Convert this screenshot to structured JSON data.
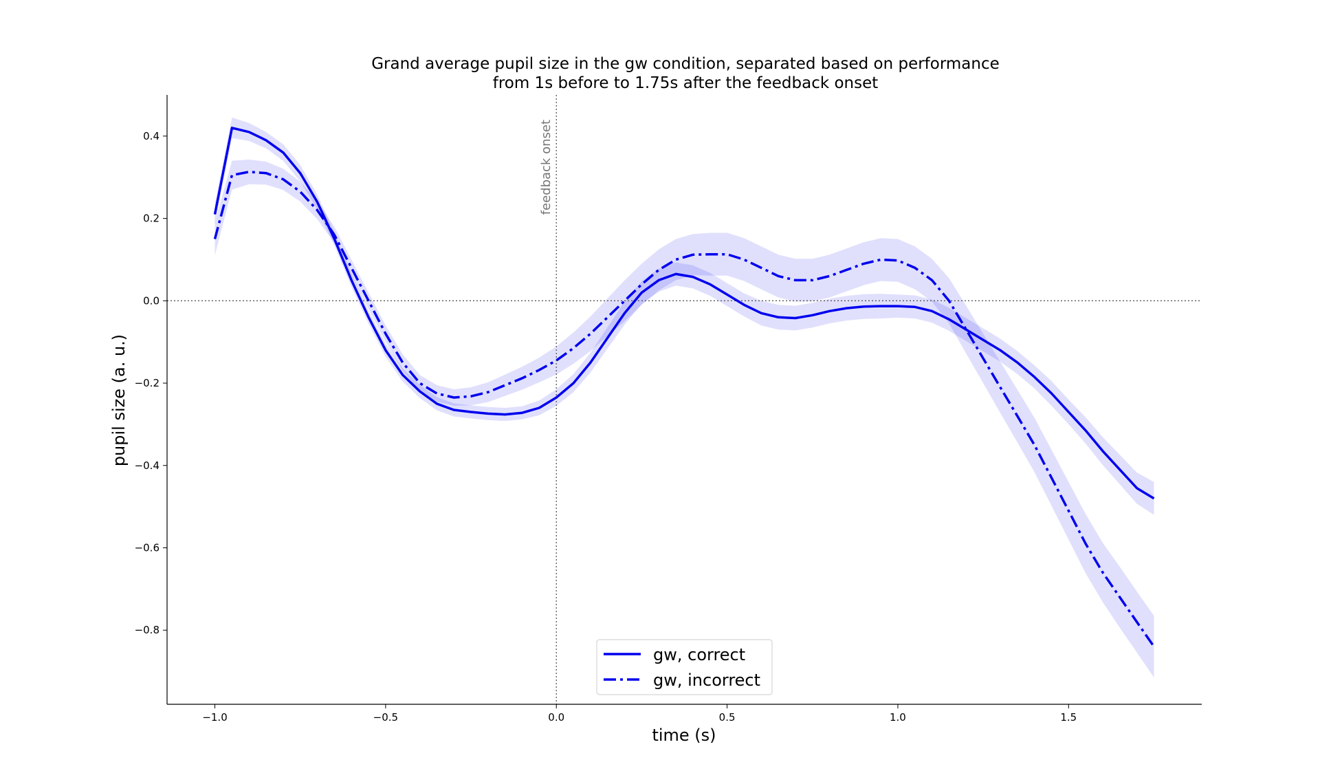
{
  "chart_data": {
    "type": "line",
    "title": "Grand average pupil size in the gw condition, separated based on performance",
    "subtitle": "from 1s before to 1.75s after the feedback onset",
    "xlabel": "time (s)",
    "ylabel": "pupil size (a. u.)",
    "xlim": [
      -1.14,
      1.89
    ],
    "ylim": [
      -0.98,
      0.5
    ],
    "x_ticks": [
      -1.0,
      -0.5,
      0.0,
      0.5,
      1.0,
      1.5
    ],
    "x_tick_labels": [
      "−1.0",
      "−0.5",
      "0.0",
      "0.5",
      "1.0",
      "1.5"
    ],
    "y_ticks": [
      0.4,
      0.2,
      0.0,
      -0.2,
      -0.4,
      -0.6,
      -0.8
    ],
    "y_tick_labels": [
      "0.4",
      "0.2",
      "0.0",
      "−0.2",
      "−0.4",
      "−0.6",
      "−0.8"
    ],
    "grid": false,
    "legend_placement": "bottom-center",
    "reference_lines": {
      "vertical_x": 0.0,
      "horizontal_y": 0.0,
      "style": "dotted"
    },
    "annotation": {
      "text": "feedback onset",
      "x": 0.0
    },
    "x": [
      -1.0,
      -0.95,
      -0.9,
      -0.85,
      -0.8,
      -0.75,
      -0.7,
      -0.65,
      -0.6,
      -0.55,
      -0.5,
      -0.45,
      -0.4,
      -0.35,
      -0.3,
      -0.25,
      -0.2,
      -0.15,
      -0.1,
      -0.05,
      0.0,
      0.05,
      0.1,
      0.15,
      0.2,
      0.25,
      0.3,
      0.35,
      0.4,
      0.45,
      0.5,
      0.55,
      0.6,
      0.65,
      0.7,
      0.75,
      0.8,
      0.85,
      0.9,
      0.95,
      1.0,
      1.05,
      1.1,
      1.15,
      1.2,
      1.25,
      1.3,
      1.35,
      1.4,
      1.45,
      1.5,
      1.55,
      1.6,
      1.65,
      1.7,
      1.75
    ],
    "series": [
      {
        "name": "gw, correct",
        "line_style": "solid",
        "color": "#0000ee",
        "values": [
          0.21,
          0.42,
          0.41,
          0.39,
          0.36,
          0.31,
          0.24,
          0.15,
          0.05,
          -0.04,
          -0.12,
          -0.18,
          -0.22,
          -0.25,
          -0.265,
          -0.27,
          -0.274,
          -0.276,
          -0.272,
          -0.26,
          -0.235,
          -0.2,
          -0.15,
          -0.09,
          -0.03,
          0.02,
          0.05,
          0.065,
          0.058,
          0.04,
          0.015,
          -0.01,
          -0.03,
          -0.04,
          -0.042,
          -0.035,
          -0.025,
          -0.018,
          -0.014,
          -0.013,
          -0.013,
          -0.015,
          -0.025,
          -0.045,
          -0.07,
          -0.095,
          -0.12,
          -0.15,
          -0.185,
          -0.225,
          -0.27,
          -0.315,
          -0.365,
          -0.41,
          -0.455,
          -0.48
        ],
        "err": [
          0.025,
          0.025,
          0.022,
          0.02,
          0.02,
          0.02,
          0.018,
          0.016,
          0.016,
          0.016,
          0.016,
          0.016,
          0.016,
          0.016,
          0.016,
          0.016,
          0.016,
          0.016,
          0.016,
          0.018,
          0.02,
          0.022,
          0.024,
          0.026,
          0.028,
          0.028,
          0.028,
          0.028,
          0.028,
          0.028,
          0.028,
          0.028,
          0.03,
          0.03,
          0.03,
          0.03,
          0.03,
          0.03,
          0.03,
          0.03,
          0.028,
          0.028,
          0.028,
          0.028,
          0.028,
          0.028,
          0.028,
          0.028,
          0.028,
          0.03,
          0.03,
          0.032,
          0.034,
          0.036,
          0.038,
          0.04
        ]
      },
      {
        "name": "gw, incorrect",
        "line_style": "dashdot",
        "color": "#0000ee",
        "values": [
          0.15,
          0.305,
          0.313,
          0.31,
          0.295,
          0.265,
          0.22,
          0.16,
          0.08,
          0.0,
          -0.08,
          -0.15,
          -0.2,
          -0.225,
          -0.235,
          -0.232,
          -0.222,
          -0.205,
          -0.188,
          -0.168,
          -0.145,
          -0.115,
          -0.08,
          -0.04,
          0.0,
          0.04,
          0.075,
          0.1,
          0.112,
          0.113,
          0.113,
          0.1,
          0.08,
          0.06,
          0.05,
          0.05,
          0.06,
          0.075,
          0.09,
          0.1,
          0.098,
          0.08,
          0.05,
          0.0,
          -0.07,
          -0.14,
          -0.21,
          -0.28,
          -0.35,
          -0.43,
          -0.51,
          -0.59,
          -0.66,
          -0.72,
          -0.78,
          -0.84
        ],
        "err": [
          0.04,
          0.035,
          0.03,
          0.028,
          0.026,
          0.024,
          0.022,
          0.02,
          0.02,
          0.02,
          0.02,
          0.02,
          0.02,
          0.02,
          0.02,
          0.022,
          0.024,
          0.026,
          0.028,
          0.03,
          0.034,
          0.038,
          0.042,
          0.046,
          0.05,
          0.05,
          0.05,
          0.05,
          0.05,
          0.052,
          0.052,
          0.052,
          0.052,
          0.052,
          0.052,
          0.052,
          0.052,
          0.052,
          0.052,
          0.052,
          0.052,
          0.052,
          0.052,
          0.055,
          0.058,
          0.06,
          0.062,
          0.064,
          0.066,
          0.068,
          0.07,
          0.072,
          0.072,
          0.074,
          0.074,
          0.075
        ]
      }
    ]
  }
}
